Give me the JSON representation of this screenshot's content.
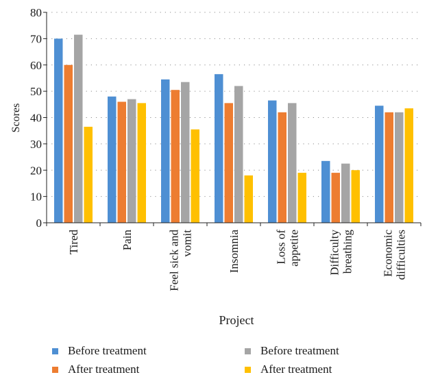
{
  "chart_data": {
    "type": "bar",
    "categories": [
      "Tired",
      "Pain",
      "Feel sick and vomit",
      "Insomnia",
      "Loss of appetite",
      "Difficulty breathing",
      "Economic difficulties"
    ],
    "category_label_lines": [
      [
        "Tired"
      ],
      [
        "Pain"
      ],
      [
        "Feel sick and",
        "vomit"
      ],
      [
        "Insomnia"
      ],
      [
        "Loss of",
        "appetite"
      ],
      [
        "Difficulty",
        "breathing"
      ],
      [
        "Economic",
        "difficulties"
      ]
    ],
    "series": [
      {
        "name": "Before treatment",
        "color": "#4e8fd3",
        "values": [
          70,
          48,
          54.5,
          56.5,
          46.5,
          23.5,
          44.5
        ]
      },
      {
        "name": "After treatment",
        "color": "#ed7d31",
        "values": [
          60,
          46,
          50.5,
          45.5,
          42,
          19,
          42
        ]
      },
      {
        "name": "Before treatment",
        "color": "#a5a5a5",
        "values": [
          71.5,
          47,
          53.5,
          52,
          45.5,
          22.5,
          42
        ]
      },
      {
        "name": "After treatment",
        "color": "#ffc000",
        "values": [
          36.5,
          45.5,
          35.5,
          18,
          19,
          20,
          43.5
        ]
      }
    ],
    "xlabel": "Project",
    "ylabel": "Scores",
    "ylim": [
      0,
      80
    ],
    "yticks": [
      0,
      10,
      20,
      30,
      40,
      50,
      60,
      70,
      80
    ],
    "grid": "horizontal dotted",
    "legend_position": "bottom"
  }
}
